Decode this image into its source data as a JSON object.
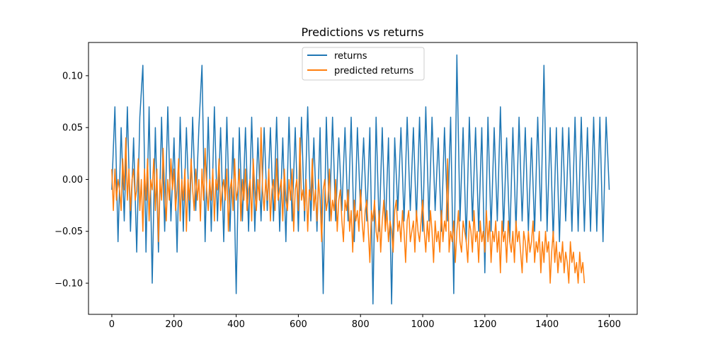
{
  "chart_data": {
    "type": "line",
    "title": "Predictions vs returns",
    "xlabel": "",
    "ylabel": "",
    "xlim": [
      -75,
      1690
    ],
    "ylim": [
      -0.13,
      0.132
    ],
    "x_ticks": [
      0,
      200,
      400,
      600,
      800,
      1000,
      1200,
      1400,
      1600
    ],
    "x_tick_labels": [
      "0",
      "200",
      "400",
      "600",
      "800",
      "1000",
      "1200",
      "1400",
      "1600"
    ],
    "y_ticks": [
      -0.1,
      -0.05,
      0.0,
      0.05,
      0.1
    ],
    "y_tick_labels": [
      "−0.10",
      "−0.05",
      "0.00",
      "0.05",
      "0.10"
    ],
    "grid": false,
    "legend_position": "top-center",
    "series": [
      {
        "name": "returns",
        "color": "#1f77b4",
        "step": 10,
        "x_start": 0,
        "values": [
          -0.01,
          0.07,
          -0.06,
          0.05,
          -0.04,
          0.07,
          -0.05,
          0.04,
          -0.07,
          0.06,
          0.11,
          -0.07,
          0.07,
          -0.1,
          0.05,
          -0.07,
          0.06,
          -0.05,
          0.07,
          -0.04,
          0.04,
          -0.07,
          0.06,
          -0.05,
          0.05,
          -0.04,
          0.06,
          -0.03,
          0.05,
          0.11,
          -0.06,
          0.06,
          -0.05,
          0.07,
          -0.04,
          0.05,
          -0.06,
          0.06,
          -0.05,
          0.04,
          -0.11,
          0.05,
          -0.04,
          0.05,
          -0.05,
          0.06,
          -0.05,
          0.04,
          -0.04,
          0.05,
          -0.03,
          0.05,
          -0.04,
          0.06,
          -0.05,
          0.04,
          -0.06,
          0.06,
          -0.04,
          0.05,
          -0.05,
          0.06,
          -0.04,
          0.07,
          -0.04,
          0.04,
          -0.05,
          0.05,
          -0.11,
          0.06,
          -0.04,
          0.06,
          -0.04,
          0.04,
          -0.03,
          0.05,
          -0.04,
          0.06,
          -0.06,
          0.05,
          -0.03,
          0.04,
          -0.04,
          0.05,
          -0.12,
          0.06,
          -0.05,
          0.05,
          -0.05,
          0.04,
          -0.12,
          0.04,
          -0.03,
          0.05,
          -0.04,
          0.06,
          -0.03,
          0.05,
          -0.04,
          0.06,
          -0.05,
          0.07,
          -0.04,
          0.06,
          -0.03,
          0.04,
          -0.05,
          0.05,
          -0.04,
          0.06,
          -0.11,
          0.12,
          -0.04,
          0.05,
          -0.06,
          0.06,
          -0.04,
          0.05,
          -0.05,
          0.05,
          -0.09,
          0.06,
          -0.05,
          0.05,
          -0.04,
          0.07,
          -0.05,
          0.04,
          -0.06,
          0.05,
          -0.05,
          0.06,
          -0.04,
          0.05,
          -0.05,
          0.04,
          -0.05,
          0.06,
          -0.04,
          0.11,
          -0.05,
          0.05,
          -0.06,
          0.05,
          -0.06,
          0.05,
          -0.04,
          0.05,
          -0.05,
          0.06,
          -0.05,
          0.06,
          -0.05,
          0.05,
          -0.05,
          0.06,
          -0.05,
          0.06,
          -0.06,
          0.06,
          -0.01
        ]
      },
      {
        "name": "predicted returns",
        "color": "#ff7f0e",
        "step": 5,
        "x_start": 0,
        "values": [
          0.01,
          -0.03,
          0.01,
          -0.02,
          0.0,
          -0.01,
          -0.03,
          0.02,
          -0.01,
          0.04,
          -0.02,
          0.01,
          -0.03,
          0.0,
          0.01,
          -0.02,
          -0.01,
          0.02,
          -0.03,
          0.0,
          -0.05,
          0.01,
          -0.02,
          0.02,
          -0.04,
          0.0,
          -0.01,
          0.02,
          -0.03,
          0.01,
          -0.06,
          0.0,
          -0.02,
          0.03,
          -0.01,
          -0.04,
          0.0,
          -0.02,
          0.02,
          -0.01,
          0.01,
          -0.03,
          -0.01,
          0.02,
          -0.04,
          0.0,
          -0.02,
          0.01,
          -0.05,
          0.0,
          -0.02,
          0.02,
          -0.01,
          -0.03,
          0.01,
          -0.02,
          0.0,
          -0.04,
          0.01,
          -0.02,
          0.03,
          -0.01,
          -0.03,
          0.0,
          -0.02,
          0.01,
          -0.04,
          0.0,
          -0.01,
          0.02,
          -0.03,
          -0.01,
          0.0,
          -0.02,
          0.01,
          -0.05,
          -0.01,
          0.0,
          -0.03,
          0.02,
          -0.02,
          -0.01,
          0.01,
          -0.04,
          0.0,
          -0.02,
          0.01,
          -0.03,
          -0.01,
          0.0,
          -0.04,
          0.02,
          -0.01,
          -0.03,
          0.0,
          -0.02,
          0.05,
          -0.01,
          -0.03,
          0.0,
          -0.02,
          0.01,
          -0.04,
          -0.01,
          0.0,
          -0.03,
          0.02,
          -0.02,
          -0.01,
          0.0,
          -0.04,
          0.01,
          -0.02,
          -0.03,
          0.0,
          -0.02,
          0.01,
          -0.05,
          -0.01,
          0.0,
          -0.03,
          0.04,
          -0.02,
          -0.01,
          -0.03,
          0.0,
          -0.05,
          -0.01,
          -0.02,
          0.02,
          -0.03,
          -0.01,
          -0.04,
          0.0,
          -0.02,
          -0.06,
          -0.01,
          0.0,
          -0.03,
          -0.02,
          0.01,
          -0.04,
          -0.02,
          -0.03,
          0.0,
          -0.05,
          -0.02,
          -0.01,
          -0.04,
          -0.06,
          -0.02,
          -0.03,
          -0.01,
          -0.05,
          -0.03,
          -0.07,
          -0.02,
          -0.04,
          -0.03,
          -0.05,
          -0.01,
          -0.04,
          -0.06,
          -0.03,
          -0.02,
          -0.05,
          -0.08,
          -0.03,
          -0.04,
          -0.02,
          -0.05,
          -0.06,
          -0.03,
          -0.07,
          -0.04,
          -0.02,
          -0.05,
          -0.03,
          -0.06,
          -0.04,
          -0.05,
          -0.07,
          -0.03,
          -0.02,
          -0.05,
          -0.04,
          -0.06,
          -0.03,
          -0.05,
          -0.08,
          -0.04,
          -0.03,
          -0.06,
          -0.05,
          -0.04,
          -0.07,
          -0.03,
          -0.05,
          -0.06,
          -0.04,
          -0.02,
          -0.05,
          -0.07,
          -0.04,
          -0.06,
          -0.03,
          -0.05,
          -0.08,
          -0.04,
          -0.06,
          -0.05,
          -0.07,
          -0.03,
          -0.06,
          -0.04,
          -0.05,
          0.02,
          -0.07,
          -0.05,
          -0.06,
          -0.04,
          -0.08,
          -0.05,
          -0.03,
          -0.06,
          -0.07,
          -0.04,
          -0.05,
          -0.06,
          -0.08,
          -0.04,
          -0.05,
          -0.07,
          -0.03,
          -0.06,
          -0.05,
          -0.08,
          -0.04,
          -0.06,
          -0.05,
          -0.07,
          -0.03,
          -0.06,
          -0.04,
          -0.08,
          -0.05,
          -0.06,
          -0.04,
          -0.07,
          -0.05,
          -0.09,
          -0.04,
          -0.06,
          -0.05,
          -0.08,
          -0.04,
          -0.06,
          -0.07,
          -0.05,
          -0.08,
          -0.04,
          -0.06,
          -0.05,
          -0.07,
          -0.09,
          -0.05,
          -0.06,
          -0.08,
          -0.05,
          -0.07,
          -0.06,
          -0.04,
          -0.08,
          -0.06,
          -0.07,
          -0.05,
          -0.09,
          -0.06,
          -0.08,
          -0.05,
          -0.07,
          -0.06,
          -0.1,
          -0.07,
          -0.05,
          -0.08,
          -0.06,
          -0.09,
          -0.07,
          -0.08,
          -0.06,
          -0.09,
          -0.07,
          -0.08,
          -0.1,
          -0.06,
          -0.08,
          -0.07,
          -0.09,
          -0.08,
          -0.1,
          -0.07,
          -0.09,
          -0.08,
          -0.1
        ]
      }
    ]
  }
}
